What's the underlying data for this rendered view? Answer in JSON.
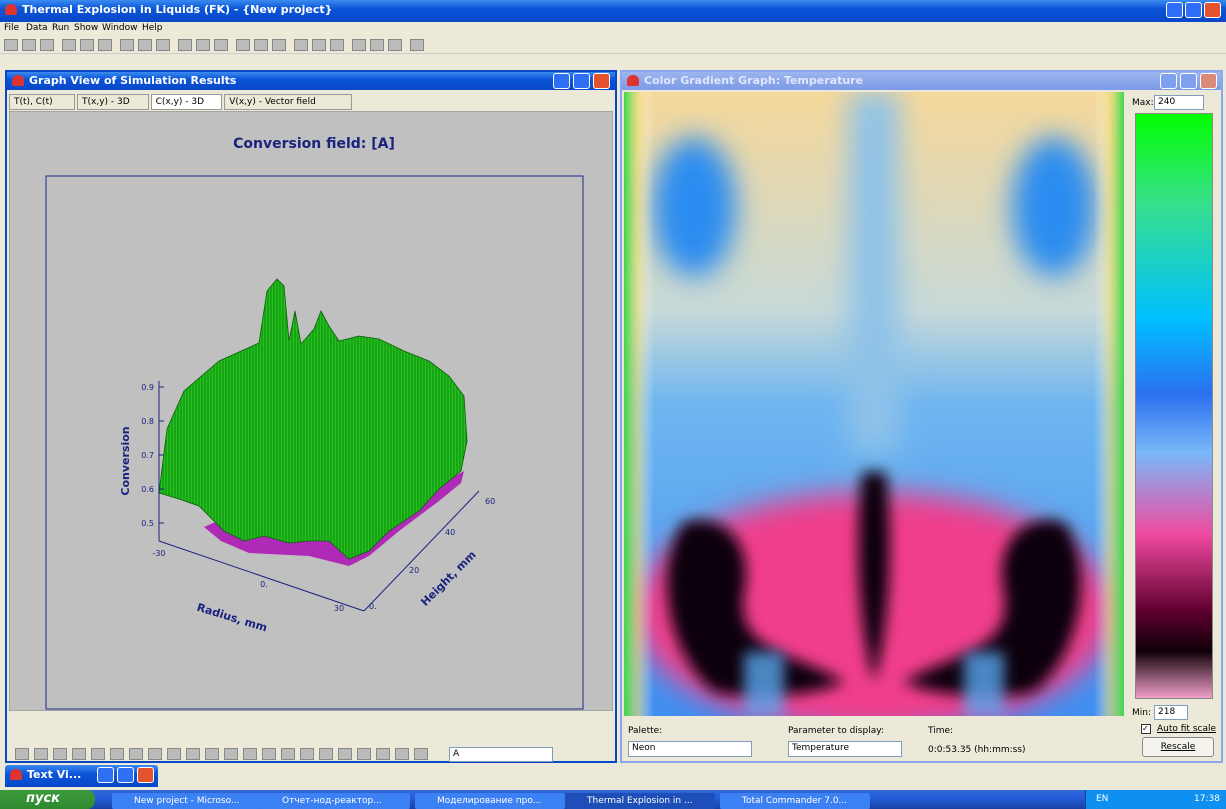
{
  "app": {
    "title": "Thermal Explosion in Liquids (FK) - {New project}",
    "menu": [
      "File",
      "Data",
      "Run",
      "Show",
      "Window",
      "Help"
    ]
  },
  "graph_window": {
    "title": "Graph View of Simulation Results",
    "tabs": [
      "T(t), C(t)",
      "T(x,y) - 3D",
      "C(x,y) - 3D",
      "V(x,y) - Vector field"
    ],
    "plot": {
      "title": "Conversion field: [A]",
      "z_label": "Conversion",
      "x_label": "Radius, mm",
      "y_label": "Height, mm",
      "z_ticks": [
        "0.9",
        "0.8",
        "0.7",
        "0.6",
        "0.5"
      ],
      "x_ticks": [
        "-30",
        "0.",
        "30"
      ],
      "y_ticks": [
        "0.",
        "20",
        "40",
        "60"
      ]
    },
    "selector": "A"
  },
  "gradient_window": {
    "title": "Color Gradient Graph: Temperature",
    "max_label": "Max:",
    "max": 240,
    "min_label": "Min:",
    "min": 218,
    "palette_label": "Palette:",
    "palette": "Neon",
    "parameter_label": "Parameter to display:",
    "parameter": "Temperature",
    "time_label": "Time:",
    "time": "0:0:53.35 (hh:mm:ss)",
    "auto_fit": "Auto fit scale",
    "rescale": "Rescale"
  },
  "minimized_window": {
    "title": "Text Vi..."
  },
  "taskbar": {
    "start": "пуск",
    "items": [
      "New project - Microso...",
      "Отчет-нод-реактор...",
      "Моделирование про...",
      "Thermal Explosion in ...",
      "Total Commander 7.0..."
    ],
    "lang": "EN",
    "clock": "17:38"
  }
}
